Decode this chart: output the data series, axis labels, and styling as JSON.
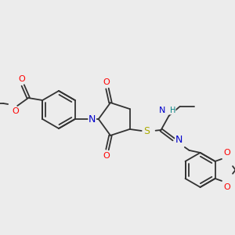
{
  "bg_color": "#ececec",
  "bond_color": "#333333",
  "atom_colors": {
    "O": "#ff0000",
    "N": "#0000cc",
    "S": "#aaaa00",
    "H": "#008080",
    "C": "#333333"
  },
  "font_size": 7.0,
  "line_width": 1.3,
  "scale": 1.0
}
